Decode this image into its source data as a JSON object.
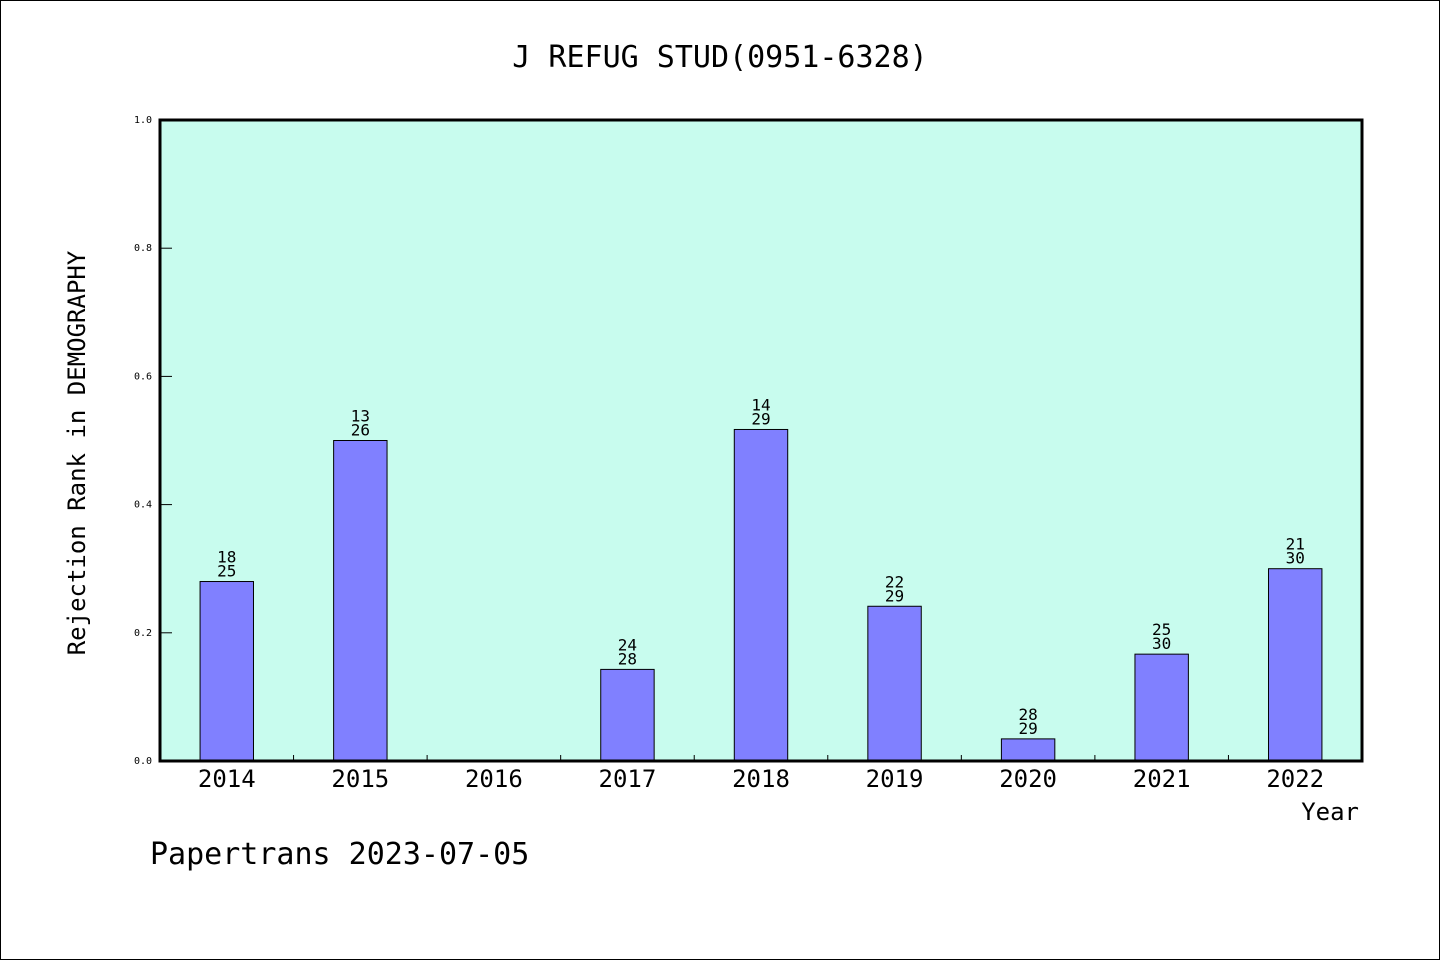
{
  "chart_data": {
    "type": "bar",
    "title": "J REFUG STUD(0951-6328)",
    "xlabel": "Year",
    "ylabel": "Rejection Rank in DEMOGRAPHY",
    "ylim": [
      0,
      1.0
    ],
    "yticks": [
      "0.0",
      "0.2",
      "0.4",
      "0.6",
      "0.8",
      "1.0"
    ],
    "categories": [
      "2014",
      "2015",
      "2016",
      "2017",
      "2018",
      "2019",
      "2020",
      "2021",
      "2022"
    ],
    "values": [
      0.28,
      0.5,
      null,
      0.1429,
      0.5172,
      0.2414,
      0.0345,
      0.1667,
      0.3
    ],
    "labels_top": [
      "18",
      "13",
      "",
      "24",
      "14",
      "22",
      "28",
      "25",
      "21"
    ],
    "labels_bottom": [
      "25",
      "26",
      "",
      "28",
      "29",
      "29",
      "29",
      "30",
      "30"
    ],
    "grid": false,
    "colors": {
      "plot_background": "#c8fcee",
      "bar_fill": "#8080ff",
      "bar_stroke": "#000000"
    }
  },
  "footer": "Papertrans 2023-07-05"
}
